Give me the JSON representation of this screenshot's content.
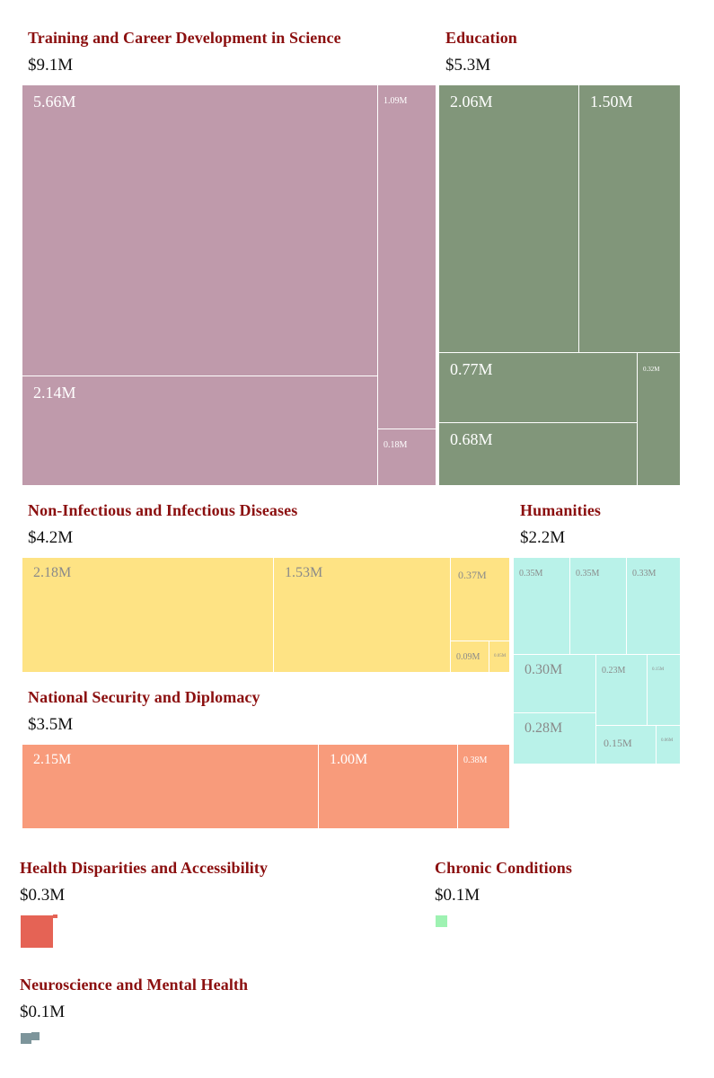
{
  "chart_data": {
    "type": "treemap",
    "title": "",
    "units": "M USD",
    "groups": [
      {
        "name": "Training and Career Development in Science",
        "total_label": "$9.1M",
        "color": "#bf9aab",
        "label_color": "#ffffff",
        "tiles": [
          {
            "label": "5.66M",
            "value": 5.66
          },
          {
            "label": "2.14M",
            "value": 2.14
          },
          {
            "label": "1.09M",
            "value": 1.09
          },
          {
            "label": "0.18M",
            "value": 0.18
          }
        ]
      },
      {
        "name": "Education",
        "total_label": "$5.3M",
        "color": "#81967a",
        "label_color": "#ffffff",
        "tiles": [
          {
            "label": "2.06M",
            "value": 2.06
          },
          {
            "label": "1.50M",
            "value": 1.5
          },
          {
            "label": "0.77M",
            "value": 0.77
          },
          {
            "label": "0.68M",
            "value": 0.68
          },
          {
            "label": "0.32M",
            "value": 0.32
          }
        ]
      },
      {
        "name": "Non-Infectious and Infectious Diseases",
        "total_label": "$4.2M",
        "color": "#fee384",
        "label_color": "#8a8a8a",
        "tiles": [
          {
            "label": "2.18M",
            "value": 2.18
          },
          {
            "label": "1.53M",
            "value": 1.53
          },
          {
            "label": "0.37M",
            "value": 0.37
          },
          {
            "label": "0.09M",
            "value": 0.09
          },
          {
            "label": "0.05M",
            "value": 0.05
          }
        ]
      },
      {
        "name": "Humanities",
        "total_label": "$2.2M",
        "color": "#b9f2e9",
        "label_color": "#8a8a8a",
        "tiles": [
          {
            "label": "0.35M",
            "value": 0.35
          },
          {
            "label": "0.35M",
            "value": 0.35
          },
          {
            "label": "0.33M",
            "value": 0.33
          },
          {
            "label": "0.30M",
            "value": 0.3
          },
          {
            "label": "0.28M",
            "value": 0.28
          },
          {
            "label": "0.23M",
            "value": 0.23
          },
          {
            "label": "0.15M",
            "value": 0.15
          },
          {
            "label": "0.15M",
            "value": 0.15
          },
          {
            "label": "0.06M",
            "value": 0.06
          }
        ]
      },
      {
        "name": "National Security and Diplomacy",
        "total_label": "$3.5M",
        "color": "#f89b7b",
        "label_color": "#ffffff",
        "tiles": [
          {
            "label": "2.15M",
            "value": 2.15
          },
          {
            "label": "1.00M",
            "value": 1.0
          },
          {
            "label": "0.38M",
            "value": 0.38
          }
        ]
      },
      {
        "name": "Health Disparities and Accessibility",
        "total_label": "$0.3M",
        "color": "#e56355",
        "label_color": "#ffffff",
        "tiles": [
          {
            "label": "",
            "value": 0.29
          },
          {
            "label": "",
            "value": 0.005
          }
        ]
      },
      {
        "name": "Chronic Conditions",
        "total_label": "$0.1M",
        "color": "#9ef2b2",
        "label_color": "#ffffff",
        "tiles": [
          {
            "label": "",
            "value": 0.06
          }
        ]
      },
      {
        "name": "Neuroscience and Mental Health",
        "total_label": "$0.1M",
        "color": "#7d959b",
        "label_color": "#ffffff",
        "tiles": [
          {
            "label": "",
            "value": 0.05
          },
          {
            "label": "",
            "value": 0.02
          }
        ]
      }
    ]
  }
}
